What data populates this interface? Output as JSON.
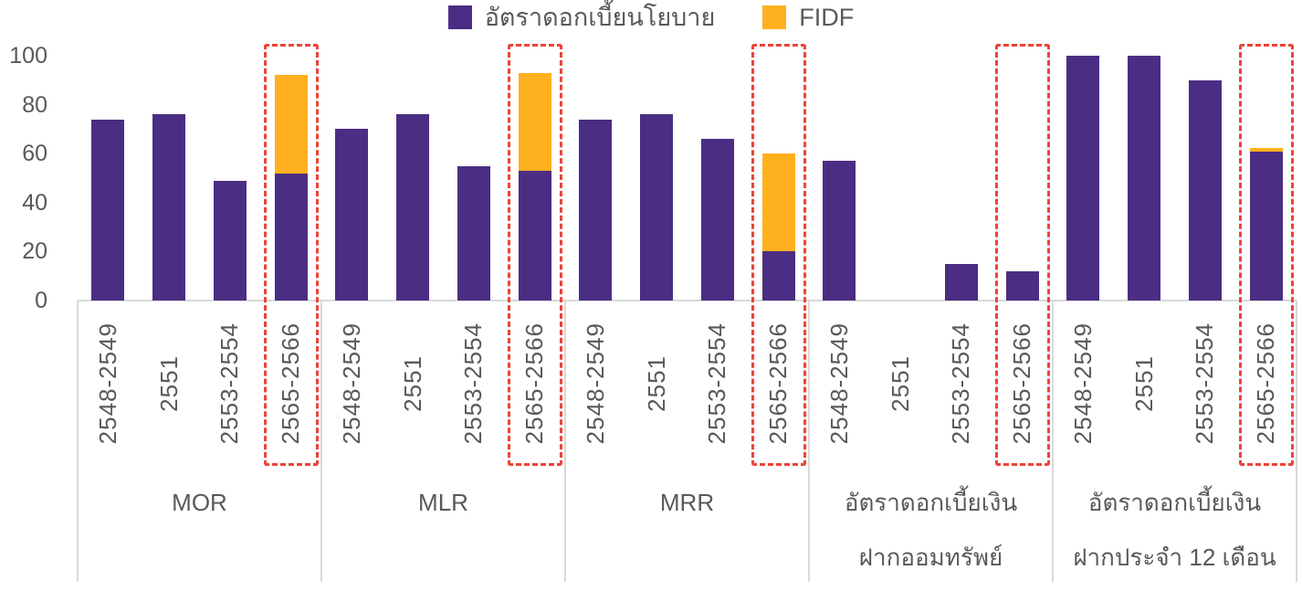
{
  "legend": {
    "items": [
      {
        "label": "อัตราดอกเบี้ยนโยบาย",
        "series": "policy"
      },
      {
        "label": "FIDF",
        "series": "fidf"
      }
    ]
  },
  "colors": {
    "policy": "#4b2d83",
    "fidf": "#ffb01e",
    "highlight": "#ed4337",
    "axis_text": "#595959",
    "grid_line": "#d9d9d9"
  },
  "chart_data": {
    "type": "bar",
    "stacked": true,
    "title": "",
    "xlabel": "",
    "ylabel": "",
    "ylim": [
      0,
      100
    ],
    "yticks": [
      0,
      20,
      40,
      60,
      80,
      100
    ],
    "grid": false,
    "legend_position": "top-center",
    "series_names": [
      "อัตราดอกเบี้ยนโยบาย",
      "FIDF"
    ],
    "categories": [
      "2548-2549",
      "2551",
      "2553-2554",
      "2565-2566"
    ],
    "highlighted_category": "2565-2566",
    "groups": [
      {
        "label_lines": [
          "MOR"
        ],
        "policy": [
          74,
          76,
          49,
          52
        ],
        "fidf": [
          0,
          0,
          0,
          40
        ]
      },
      {
        "label_lines": [
          "MLR"
        ],
        "policy": [
          70,
          76,
          55,
          53
        ],
        "fidf": [
          0,
          0,
          0,
          40
        ]
      },
      {
        "label_lines": [
          "MRR"
        ],
        "policy": [
          74,
          76,
          66,
          20
        ],
        "fidf": [
          0,
          0,
          0,
          40
        ]
      },
      {
        "label_lines": [
          "อัตราดอกเบี้ยเงิน",
          "ฝากออมทรัพย์"
        ],
        "policy": [
          57,
          0,
          15,
          12
        ],
        "fidf": [
          0,
          0,
          0,
          0
        ]
      },
      {
        "label_lines": [
          "อัตราดอกเบี้ยเงิน",
          "ฝากประจำ 12 เดือน"
        ],
        "policy": [
          100,
          100,
          90,
          61
        ],
        "fidf": [
          0,
          0,
          0,
          1.5
        ]
      }
    ]
  }
}
